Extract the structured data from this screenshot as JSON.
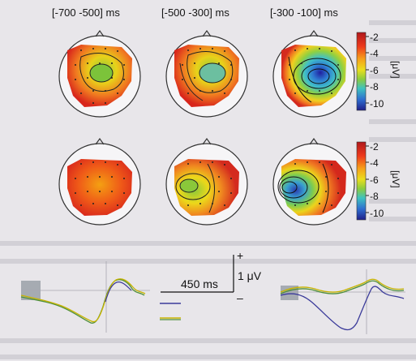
{
  "figure": {
    "intervals": [
      "[-700 -500] ms",
      "[-500 -300] ms",
      "[-300 -100] ms"
    ],
    "colorbar_top": {
      "ticks": [
        "-2",
        "-4",
        "-6",
        "-8",
        "-10"
      ],
      "unit": "[μV]"
    },
    "colorbar_bottom": {
      "ticks": [
        "-2",
        "-4",
        "-6",
        "-8",
        "-10"
      ],
      "unit": "[μV]"
    },
    "scale_bar": {
      "plus": "+",
      "minus": "–",
      "amplitude": "1 μV",
      "time": "450 ms"
    },
    "colors": {
      "trace_yellow": "#c8b400",
      "trace_green": "#4f8f3a",
      "trace_blue": "#3a3a9a",
      "head_outline": "#333333"
    }
  }
}
